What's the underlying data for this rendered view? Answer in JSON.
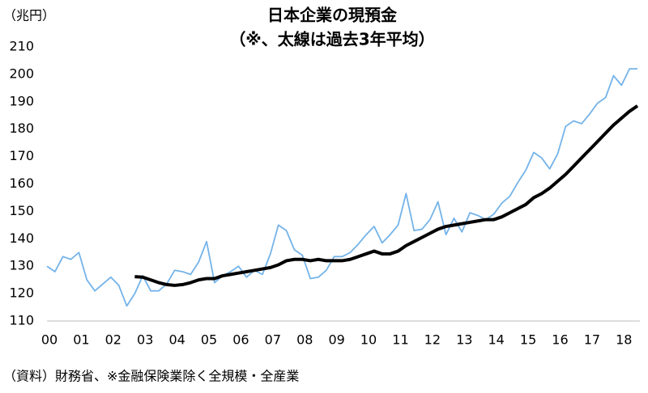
{
  "chart_data": {
    "type": "line",
    "title": "日本企業の現預金",
    "subtitle": "（※、太線は過去3年平均）",
    "y_label": "（兆円）",
    "source": "（資料）財務省、※金融保険業除く全規模・全産業",
    "x": [
      0,
      0.25,
      0.5,
      0.75,
      1,
      1.25,
      1.5,
      1.75,
      2,
      2.25,
      2.5,
      2.75,
      3,
      3.25,
      3.5,
      3.75,
      4,
      4.25,
      4.5,
      4.75,
      5,
      5.25,
      5.5,
      5.75,
      6,
      6.25,
      6.5,
      6.75,
      7,
      7.25,
      7.5,
      7.75,
      8,
      8.25,
      8.5,
      8.75,
      9,
      9.25,
      9.5,
      9.75,
      10,
      10.25,
      10.5,
      10.75,
      11,
      11.25,
      11.5,
      11.75,
      12,
      12.25,
      12.5,
      12.75,
      13,
      13.25,
      13.5,
      13.75,
      14,
      14.25,
      14.5,
      14.75,
      15,
      15.25,
      15.5,
      15.75,
      16,
      16.25,
      16.5,
      16.75,
      17,
      17.25,
      17.5,
      17.75,
      18,
      18.25,
      18.5
    ],
    "series": [
      {
        "color": "#74b3e8",
        "values": [
          130,
          128,
          133.5,
          132.5,
          135,
          125,
          121,
          123.5,
          126,
          123,
          115.5,
          120,
          126.5,
          121,
          121,
          123.5,
          128.5,
          128,
          127,
          131.5,
          139,
          124,
          126.5,
          128,
          130,
          126,
          128.5,
          127,
          134.5,
          145,
          143,
          136,
          134,
          125.5,
          126,
          128.5,
          133.5,
          133.5,
          135,
          138,
          141.5,
          144.5,
          138.5,
          141.5,
          145,
          156.5,
          143,
          143.5,
          147,
          153.5,
          141.5,
          147.5,
          142.5,
          149.5,
          148.5,
          147,
          149,
          153,
          155.5,
          160.5,
          165,
          171.5,
          169.5,
          165.5,
          171,
          181,
          183,
          182,
          185.5,
          189.5,
          191.5,
          199.5,
          196,
          202,
          202
        ]
      },
      {
        "color": "#000000",
        "values": [
          null,
          null,
          null,
          null,
          null,
          null,
          null,
          null,
          null,
          null,
          null,
          126.2,
          126,
          125,
          124,
          123.3,
          123,
          123.3,
          124,
          125,
          125.5,
          125.5,
          126.5,
          127,
          127.5,
          128,
          128.5,
          129,
          129.5,
          130.5,
          132,
          132.5,
          132.5,
          132,
          132.5,
          132,
          132,
          132,
          132.5,
          133.5,
          134.5,
          135.5,
          134.5,
          134.5,
          135.5,
          137.5,
          139,
          140.5,
          142,
          143.5,
          144.5,
          145,
          145.5,
          146,
          146.5,
          147,
          147,
          148,
          149.5,
          151,
          152.5,
          155,
          156.5,
          158.5,
          161,
          163.5,
          166.5,
          169.5,
          172.5,
          175.5,
          178.5,
          181.5,
          184,
          186.5,
          188.5
        ]
      }
    ],
    "xlim": [
      0,
      18.5
    ],
    "xticks": [
      {
        "value": 0,
        "label": "00"
      },
      {
        "value": 1,
        "label": "01"
      },
      {
        "value": 2,
        "label": "02"
      },
      {
        "value": 3,
        "label": "03"
      },
      {
        "value": 4,
        "label": "04"
      },
      {
        "value": 5,
        "label": "05"
      },
      {
        "value": 6,
        "label": "06"
      },
      {
        "value": 7,
        "label": "07"
      },
      {
        "value": 8,
        "label": "08"
      },
      {
        "value": 9,
        "label": "09"
      },
      10,
      11,
      12,
      13,
      14,
      15,
      16,
      17,
      18
    ],
    "ylim": [
      110,
      210
    ],
    "yticks": [
      110,
      120,
      130,
      140,
      150,
      160,
      170,
      180,
      190,
      200,
      210
    ],
    "grid": false
  }
}
